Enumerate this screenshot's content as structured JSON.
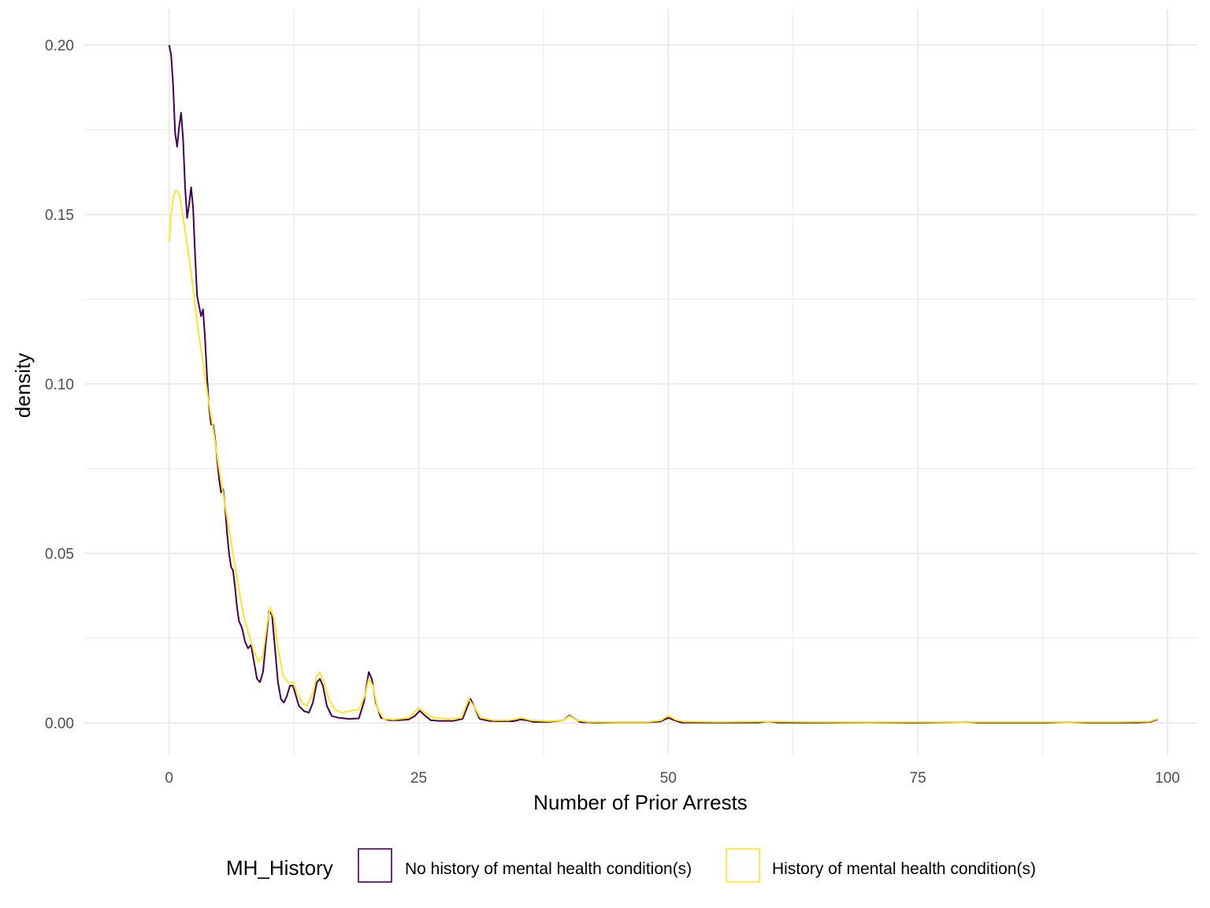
{
  "chart_data": {
    "type": "line",
    "title": "",
    "xlabel": "Number of Prior Arrests",
    "ylabel": "density",
    "xlim": [
      -8.5,
      103
    ],
    "ylim": [
      -0.0095,
      0.2105
    ],
    "x_ticks": [
      0,
      25,
      50,
      75,
      100
    ],
    "x_tick_labels": [
      "0",
      "25",
      "50",
      "75",
      "100"
    ],
    "y_ticks": [
      0.0,
      0.05,
      0.1,
      0.15,
      0.2
    ],
    "y_tick_labels": [
      "0.00",
      "0.05",
      "0.10",
      "0.15",
      "0.20"
    ],
    "x_minor": [
      12.5,
      37.5,
      62.5,
      87.5
    ],
    "y_minor": [
      0.025,
      0.075,
      0.125,
      0.175
    ],
    "grid": true,
    "legend": {
      "title": "MH_History",
      "position": "bottom"
    },
    "series": [
      {
        "name": "No history of mental health condition(s)",
        "color": "#440154",
        "points": [
          [
            0,
            0.2
          ],
          [
            0.2,
            0.197
          ],
          [
            0.4,
            0.188
          ],
          [
            0.6,
            0.174
          ],
          [
            0.8,
            0.17
          ],
          [
            1.0,
            0.176
          ],
          [
            1.2,
            0.18
          ],
          [
            1.4,
            0.172
          ],
          [
            1.6,
            0.158
          ],
          [
            1.8,
            0.149
          ],
          [
            2.0,
            0.153
          ],
          [
            2.2,
            0.158
          ],
          [
            2.4,
            0.152
          ],
          [
            2.6,
            0.138
          ],
          [
            2.8,
            0.126
          ],
          [
            3.0,
            0.123
          ],
          [
            3.2,
            0.12
          ],
          [
            3.4,
            0.122
          ],
          [
            3.6,
            0.113
          ],
          [
            3.8,
            0.102
          ],
          [
            4.0,
            0.093
          ],
          [
            4.2,
            0.088
          ],
          [
            4.4,
            0.088
          ],
          [
            4.6,
            0.084
          ],
          [
            4.8,
            0.078
          ],
          [
            5.0,
            0.072
          ],
          [
            5.2,
            0.068
          ],
          [
            5.4,
            0.069
          ],
          [
            5.6,
            0.064
          ],
          [
            5.8,
            0.056
          ],
          [
            6.0,
            0.05
          ],
          [
            6.2,
            0.046
          ],
          [
            6.4,
            0.045
          ],
          [
            6.6,
            0.04
          ],
          [
            6.8,
            0.034
          ],
          [
            7.0,
            0.03
          ],
          [
            7.3,
            0.028
          ],
          [
            7.6,
            0.024
          ],
          [
            7.9,
            0.022
          ],
          [
            8.2,
            0.023
          ],
          [
            8.5,
            0.018
          ],
          [
            8.8,
            0.013
          ],
          [
            9.1,
            0.012
          ],
          [
            9.4,
            0.015
          ],
          [
            9.7,
            0.024
          ],
          [
            10.0,
            0.033
          ],
          [
            10.3,
            0.032
          ],
          [
            10.6,
            0.022
          ],
          [
            10.9,
            0.012
          ],
          [
            11.2,
            0.007
          ],
          [
            11.5,
            0.006
          ],
          [
            11.8,
            0.008
          ],
          [
            12.1,
            0.011
          ],
          [
            12.4,
            0.011
          ],
          [
            12.7,
            0.008
          ],
          [
            13.0,
            0.005
          ],
          [
            13.5,
            0.0035
          ],
          [
            14.0,
            0.003
          ],
          [
            14.4,
            0.006
          ],
          [
            14.8,
            0.012
          ],
          [
            15.1,
            0.013
          ],
          [
            15.4,
            0.011
          ],
          [
            15.8,
            0.005
          ],
          [
            16.3,
            0.002
          ],
          [
            17.0,
            0.0015
          ],
          [
            18.0,
            0.0012
          ],
          [
            19.0,
            0.0013
          ],
          [
            19.5,
            0.006
          ],
          [
            20.0,
            0.015
          ],
          [
            20.3,
            0.013
          ],
          [
            20.7,
            0.006
          ],
          [
            21.2,
            0.0015
          ],
          [
            22.0,
            0.0008
          ],
          [
            23.0,
            0.0008
          ],
          [
            24.0,
            0.001
          ],
          [
            24.6,
            0.002
          ],
          [
            25.1,
            0.0036
          ],
          [
            25.6,
            0.0022
          ],
          [
            26.2,
            0.0008
          ],
          [
            27.0,
            0.0006
          ],
          [
            28.5,
            0.0006
          ],
          [
            29.4,
            0.0012
          ],
          [
            29.9,
            0.005
          ],
          [
            30.2,
            0.007
          ],
          [
            30.6,
            0.0045
          ],
          [
            31.1,
            0.0012
          ],
          [
            32.0,
            0.0006
          ],
          [
            33.0,
            0.0005
          ],
          [
            34.5,
            0.0005
          ],
          [
            35.2,
            0.001
          ],
          [
            35.8,
            0.0008
          ],
          [
            36.5,
            0.0003
          ],
          [
            38.0,
            0.0003
          ],
          [
            39.5,
            0.0008
          ],
          [
            40.1,
            0.0022
          ],
          [
            40.6,
            0.0012
          ],
          [
            41.2,
            0.0002
          ],
          [
            43.0,
            0.0001
          ],
          [
            45.0,
            0.0002
          ],
          [
            48.0,
            0.0002
          ],
          [
            49.2,
            0.0004
          ],
          [
            50.0,
            0.0015
          ],
          [
            50.6,
            0.0008
          ],
          [
            51.3,
            0.0001
          ],
          [
            55.0,
            0.0001
          ],
          [
            59.0,
            0.0001
          ],
          [
            60.0,
            0.0004
          ],
          [
            61.0,
            0.0001
          ],
          [
            65.0,
            0.0001
          ],
          [
            70.0,
            0.0002
          ],
          [
            75.0,
            0.0001
          ],
          [
            80.0,
            0.0003
          ],
          [
            81.0,
            0.0001
          ],
          [
            85.0,
            0.0001
          ],
          [
            88.0,
            0.0001
          ],
          [
            90.0,
            0.0003
          ],
          [
            92.0,
            0.0001
          ],
          [
            97.0,
            0.0001
          ],
          [
            98.3,
            0.0003
          ],
          [
            99.0,
            0.001
          ]
        ]
      },
      {
        "name": "History of mental health condition(s)",
        "color": "#FDE725",
        "points": [
          [
            0,
            0.142
          ],
          [
            0.2,
            0.15
          ],
          [
            0.4,
            0.155
          ],
          [
            0.6,
            0.157
          ],
          [
            0.8,
            0.157
          ],
          [
            1.0,
            0.156
          ],
          [
            1.3,
            0.151
          ],
          [
            1.6,
            0.145
          ],
          [
            2.0,
            0.137
          ],
          [
            2.4,
            0.128
          ],
          [
            2.8,
            0.118
          ],
          [
            3.2,
            0.11
          ],
          [
            3.6,
            0.102
          ],
          [
            4.0,
            0.094
          ],
          [
            4.5,
            0.085
          ],
          [
            5.0,
            0.075
          ],
          [
            5.5,
            0.066
          ],
          [
            6.0,
            0.057
          ],
          [
            6.5,
            0.048
          ],
          [
            7.0,
            0.039
          ],
          [
            7.5,
            0.031
          ],
          [
            8.0,
            0.026
          ],
          [
            8.5,
            0.021
          ],
          [
            9.0,
            0.018
          ],
          [
            9.4,
            0.02
          ],
          [
            9.8,
            0.029
          ],
          [
            10.1,
            0.034
          ],
          [
            10.5,
            0.031
          ],
          [
            10.9,
            0.022
          ],
          [
            11.4,
            0.014
          ],
          [
            11.9,
            0.012
          ],
          [
            12.4,
            0.012
          ],
          [
            12.8,
            0.009
          ],
          [
            13.3,
            0.006
          ],
          [
            13.8,
            0.005
          ],
          [
            14.3,
            0.008
          ],
          [
            14.8,
            0.014
          ],
          [
            15.1,
            0.015
          ],
          [
            15.5,
            0.012
          ],
          [
            16.0,
            0.007
          ],
          [
            16.6,
            0.004
          ],
          [
            17.3,
            0.003
          ],
          [
            18.0,
            0.0035
          ],
          [
            19.0,
            0.004
          ],
          [
            19.6,
            0.008
          ],
          [
            20.0,
            0.013
          ],
          [
            20.4,
            0.011
          ],
          [
            20.9,
            0.004
          ],
          [
            21.5,
            0.0012
          ],
          [
            22.5,
            0.001
          ],
          [
            24.0,
            0.0015
          ],
          [
            25.0,
            0.0045
          ],
          [
            25.6,
            0.003
          ],
          [
            26.5,
            0.0015
          ],
          [
            28.0,
            0.0012
          ],
          [
            29.3,
            0.0015
          ],
          [
            30.0,
            0.007
          ],
          [
            30.5,
            0.005
          ],
          [
            31.2,
            0.0015
          ],
          [
            32.5,
            0.0008
          ],
          [
            34.0,
            0.0008
          ],
          [
            35.3,
            0.0015
          ],
          [
            36.2,
            0.0008
          ],
          [
            38.0,
            0.0005
          ],
          [
            39.5,
            0.0008
          ],
          [
            40.1,
            0.002
          ],
          [
            40.8,
            0.0008
          ],
          [
            42.0,
            0.0003
          ],
          [
            45.0,
            0.0003
          ],
          [
            48.0,
            0.0003
          ],
          [
            49.3,
            0.0008
          ],
          [
            50.0,
            0.0022
          ],
          [
            50.7,
            0.001
          ],
          [
            51.5,
            0.0004
          ],
          [
            55.0,
            0.0003
          ],
          [
            60.0,
            0.0004
          ],
          [
            65.0,
            0.0003
          ],
          [
            70.0,
            0.0003
          ],
          [
            75.0,
            0.0003
          ],
          [
            80.0,
            0.0003
          ],
          [
            85.0,
            0.0003
          ],
          [
            90.0,
            0.0003
          ],
          [
            95.0,
            0.0003
          ],
          [
            98.2,
            0.0004
          ],
          [
            99.0,
            0.0012
          ]
        ]
      }
    ]
  }
}
